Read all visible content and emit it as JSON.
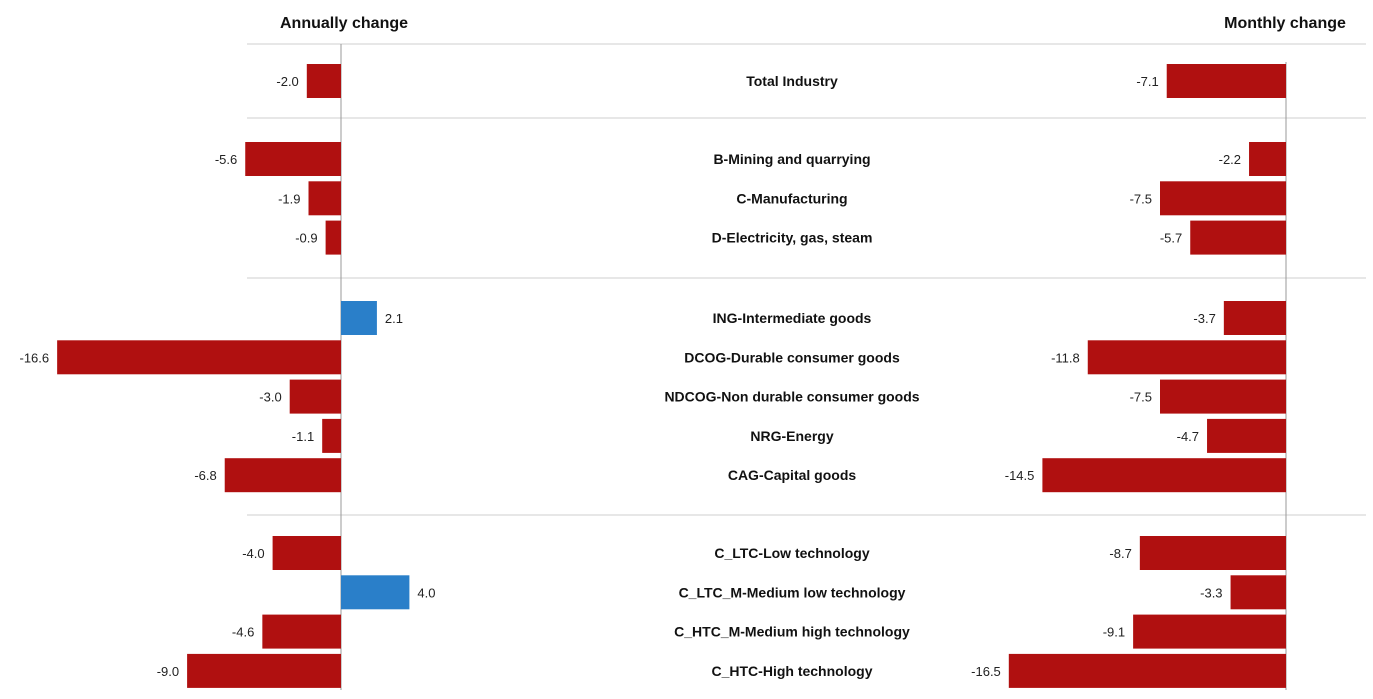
{
  "chart_data": {
    "type": "bar",
    "orientation": "horizontal",
    "panels": [
      {
        "key": "annual",
        "title": "Annually change"
      },
      {
        "key": "monthly",
        "title": "Monthly change"
      }
    ],
    "groups": [
      [
        {
          "label": "Total Industry",
          "annual": -2.0,
          "monthly": -7.1
        }
      ],
      [
        {
          "label": "B-Mining and quarrying",
          "annual": -5.6,
          "monthly": -2.2
        },
        {
          "label": "C-Manufacturing",
          "annual": -1.9,
          "monthly": -7.5
        },
        {
          "label": "D-Electricity, gas, steam",
          "annual": -0.9,
          "monthly": -5.7
        }
      ],
      [
        {
          "label": "ING-Intermediate goods",
          "annual": 2.1,
          "monthly": -3.7
        },
        {
          "label": "DCOG-Durable consumer goods",
          "annual": -16.6,
          "monthly": -11.8
        },
        {
          "label": "NDCOG-Non durable consumer goods",
          "annual": -3.0,
          "monthly": -7.5
        },
        {
          "label": "NRG-Energy",
          "annual": -1.1,
          "monthly": -4.7
        },
        {
          "label": "CAG-Capital goods",
          "annual": -6.8,
          "monthly": -14.5
        }
      ],
      [
        {
          "label": "C_LTC-Low technology",
          "annual": -4.0,
          "monthly": -8.7
        },
        {
          "label": "C_LTC_M-Medium low technology",
          "annual": 4.0,
          "monthly": -3.3
        },
        {
          "label": "C_HTC_M-Medium high technology",
          "annual": -4.6,
          "monthly": -9.1
        },
        {
          "label": "C_HTC-High technology",
          "annual": -9.0,
          "monthly": -16.5
        }
      ]
    ],
    "colors": {
      "negative": "#b01010",
      "positive": "#2a7fc9"
    },
    "grid": false
  }
}
